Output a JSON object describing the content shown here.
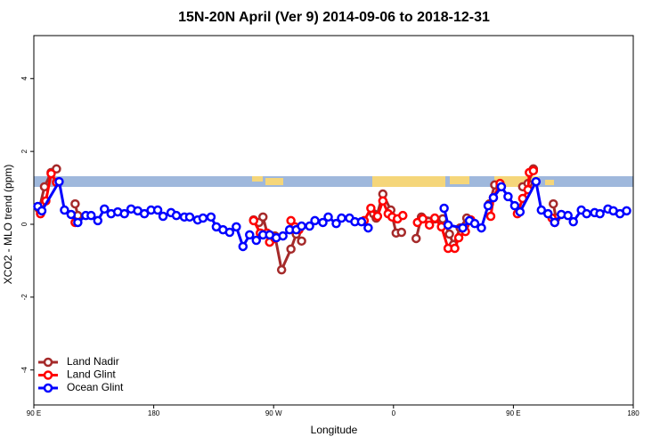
{
  "chart_data": {
    "type": "line",
    "title": "15N-20N April (Ver 9)   2014-09-06 to 2018-12-31",
    "x_label": "Longitude",
    "y_label": "XCO2 - MLO trend (ppm)",
    "xlim": [
      90,
      540
    ],
    "ylim": [
      -4.96,
      5.18
    ],
    "xticks": [
      {
        "value": 90,
        "label": "90 E"
      },
      180,
      {
        "value": 270,
        "label": "90 W"
      },
      {
        "value": 360,
        "label": "0"
      },
      {
        "value": 450,
        "label": "90 E"
      },
      {
        "value": 540,
        "label": "180"
      }
    ],
    "yticks": [
      -4,
      -2,
      0,
      2,
      4
    ],
    "legend": "bottom-left",
    "series": [
      {
        "name": "Land Nadir",
        "color": "#a52a2a",
        "x": [
          94,
          98,
          103,
          107,
          null,
          121,
          123,
          null,
          255,
          259,
          262,
          267,
          271,
          276,
          283,
          287,
          291,
          null,
          345,
          347,
          352,
          358,
          362,
          366,
          null,
          377,
          381,
          391,
          397,
          402,
          405,
          410,
          415,
          null,
          432,
          436,
          440,
          null,
          457,
          461,
          465,
          null,
          480,
          482
        ],
        "values": [
          0.42,
          1.03,
          1.42,
          1.52,
          null,
          0.56,
          0.24,
          null,
          0.12,
          0.05,
          0.2,
          -0.49,
          -0.32,
          -1.25,
          -0.68,
          -0.27,
          -0.46,
          null,
          0.29,
          0.17,
          0.83,
          0.39,
          -0.24,
          -0.22,
          null,
          -0.39,
          0.2,
          0.15,
          0.15,
          -0.27,
          -0.56,
          -0.1,
          0.17,
          null,
          0.56,
          1.08,
          1.03,
          null,
          1.03,
          1.12,
          1.52,
          null,
          0.56,
          0.17
        ]
      },
      {
        "name": "Land Glint",
        "color": "#ff0000",
        "x": [
          95,
          99,
          103,
          107,
          null,
          121,
          null,
          255,
          260,
          265,
          267,
          271,
          null,
          283,
          286,
          289,
          null,
          338,
          343,
          348,
          352,
          356,
          359,
          363,
          367,
          null,
          378,
          382,
          387,
          391,
          396,
          401,
          406,
          409,
          414,
          418,
          null,
          433,
          435,
          440,
          null,
          453,
          457,
          461,
          462,
          465,
          null,
          479,
          481
        ],
        "values": [
          0.29,
          0.64,
          1.39,
          1.15,
          null,
          0.05,
          null,
          0.1,
          -0.24,
          -0.24,
          -0.49,
          -0.39,
          null,
          0.1,
          -0.07,
          -0.15,
          null,
          0.1,
          0.44,
          0.22,
          0.64,
          0.29,
          0.2,
          0.15,
          0.24,
          null,
          0.05,
          0.15,
          -0.02,
          0.17,
          -0.07,
          -0.66,
          -0.66,
          -0.37,
          -0.2,
          0.12,
          null,
          0.22,
          0.73,
          1.12,
          null,
          0.29,
          0.71,
          0.95,
          1.42,
          1.47,
          null,
          0.17,
          0.05
        ]
      },
      {
        "name": "Ocean Glint",
        "color": "#0000ff",
        "x": [
          93,
          96,
          109,
          113,
          118,
          123,
          129,
          133,
          138,
          143,
          148,
          153,
          158,
          163,
          168,
          173,
          178,
          183,
          187,
          193,
          197,
          203,
          207,
          213,
          217,
          223,
          227,
          232,
          237,
          242,
          247,
          252,
          257,
          262,
          267,
          272,
          277,
          282,
          287,
          291,
          297,
          301,
          307,
          311,
          317,
          321,
          327,
          331,
          336,
          341,
          null,
          398,
          401,
          412,
          417,
          421,
          426,
          431,
          435,
          441,
          446,
          451,
          455,
          467,
          471,
          476,
          481,
          486,
          491,
          495,
          501,
          505,
          511,
          515,
          521,
          525,
          530,
          535
        ],
        "values": [
          0.49,
          0.37,
          1.17,
          0.39,
          0.27,
          0.05,
          0.24,
          0.24,
          0.1,
          0.42,
          0.29,
          0.34,
          0.29,
          0.42,
          0.37,
          0.29,
          0.39,
          0.39,
          0.22,
          0.32,
          0.24,
          0.2,
          0.2,
          0.12,
          0.17,
          0.2,
          -0.07,
          -0.15,
          -0.22,
          -0.07,
          -0.61,
          -0.29,
          -0.44,
          -0.29,
          -0.29,
          -0.37,
          -0.32,
          -0.15,
          -0.15,
          -0.05,
          -0.05,
          0.1,
          0.05,
          0.2,
          0.02,
          0.17,
          0.17,
          0.07,
          0.07,
          -0.1,
          null,
          0.44,
          -0.02,
          -0.1,
          0.1,
          0.02,
          -0.1,
          0.51,
          0.73,
          1.03,
          0.76,
          0.51,
          0.34,
          1.17,
          0.39,
          0.29,
          0.05,
          0.27,
          0.24,
          0.07,
          0.39,
          0.29,
          0.32,
          0.29,
          0.42,
          0.37,
          0.29,
          0.37
        ]
      }
    ]
  }
}
